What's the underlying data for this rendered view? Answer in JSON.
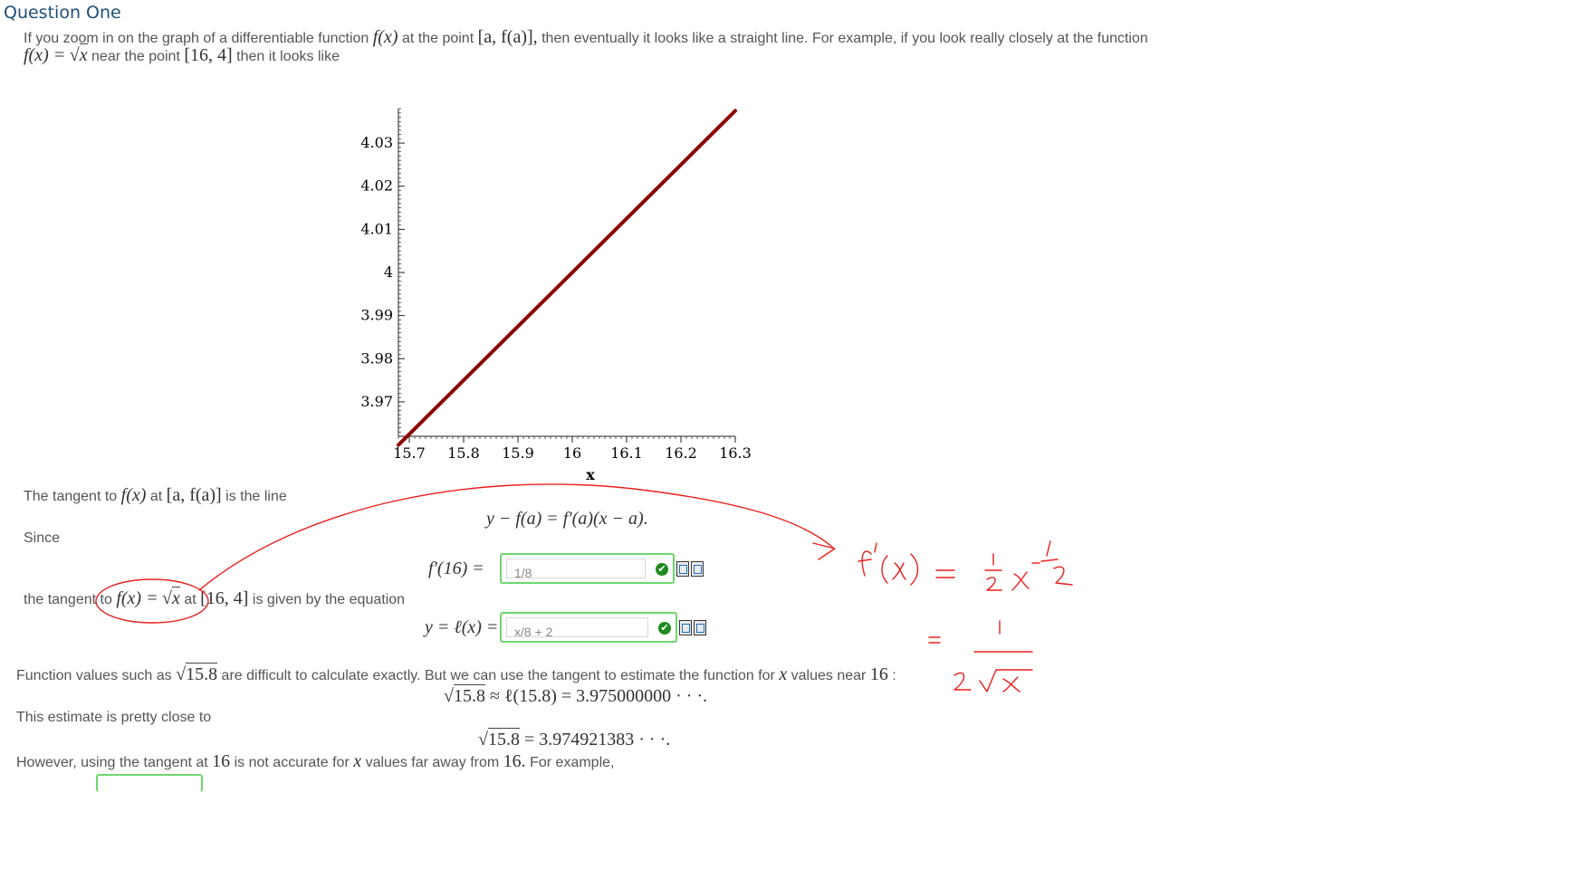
{
  "title": "Question One",
  "intro": {
    "line1_a": "If you zoom in on the graph of a differentiable function",
    "line1_fx": "f(x)",
    "line1_b": "at the point",
    "line1_pt": "[a, f(a)],",
    "line1_c": "then eventually it looks like a straight line. For example, if you look really closely at the function",
    "line2_fx": "f(x) =",
    "line2_x": "x",
    "line2_a": "near the point",
    "line2_pt": "[16, 4]",
    "line2_b": "then it looks like"
  },
  "chart_data": {
    "type": "line",
    "xlabel": "x",
    "x_ticks": [
      "15.7",
      "15.8",
      "15.9",
      "16",
      "16.1",
      "16.2",
      "16.3"
    ],
    "y_ticks": [
      "3.97",
      "3.98",
      "3.99",
      "4",
      "4.01",
      "4.02",
      "4.03"
    ],
    "xlim": [
      15.68,
      16.3
    ],
    "ylim": [
      3.962,
      4.038
    ],
    "series": [
      {
        "x": [
          15.68,
          16.3
        ],
        "y": [
          3.96,
          4.0375
        ],
        "color": "#8b0000"
      }
    ]
  },
  "tangent": {
    "a": "The tangent to",
    "fx": "f(x)",
    "b": "at",
    "pt": "[a, f(a)]",
    "c": "is the line",
    "eq": "y − f(a) = f′(a)(x − a)."
  },
  "since": "Since",
  "deriv": {
    "label": "f′(16) =",
    "value": "1/8"
  },
  "tangent2": {
    "a": "the tangent to",
    "fx": "f(x) =",
    "x": "x",
    "b": "at",
    "pt": "[16, 4]",
    "c": "is given by the equation"
  },
  "line_eq": {
    "label": "y = ℓ(x) =",
    "value": "x/8 + 2"
  },
  "values": {
    "a": "Function values such as",
    "sqrt": "15.8",
    "b": "are difficult to calculate exactly. But we can use the tangent to estimate the function for",
    "x": "x",
    "c": "values near",
    "n": "16",
    "colon": ":",
    "approx_sqrt": "15.8",
    "approx_rest": "≈ ℓ(15.8) = 3.975000000 · · ·."
  },
  "estimate": "This estimate is pretty close to",
  "exact": {
    "sqrt": "15.8",
    "rest": "= 3.974921383 · · ·."
  },
  "however": {
    "a": "However, using the tangent at",
    "n": "16",
    "b": "is not accurate for",
    "x": "x",
    "c": "values far away from",
    "n2": "16.",
    "d": "For example,"
  },
  "annotation_colors": {
    "ink": "#e8201e"
  }
}
